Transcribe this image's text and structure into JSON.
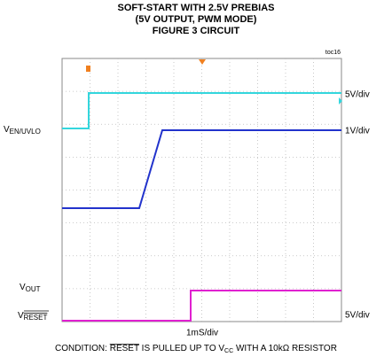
{
  "title": [
    "SOFT-START WITH 2.5V PREBIAS",
    "(5V OUTPUT, PWM MODE)",
    "FIGURE 3 CIRCUIT"
  ],
  "figure_id": "toc16",
  "left_labels": [
    {
      "main": "V",
      "sub": "EN/UVLO"
    },
    {
      "main": "V",
      "sub": "OUT"
    },
    {
      "main": "V",
      "sub": "RESET"
    }
  ],
  "right_labels": [
    "5V/div",
    "1V/div",
    "5V/div"
  ],
  "time_scale": "1mS/div",
  "condition": [
    "CONDITION: ",
    "RESET",
    " IS PULLED UP TO V",
    "CC",
    " WITH A 10kΩ RESISTOR"
  ]
}
